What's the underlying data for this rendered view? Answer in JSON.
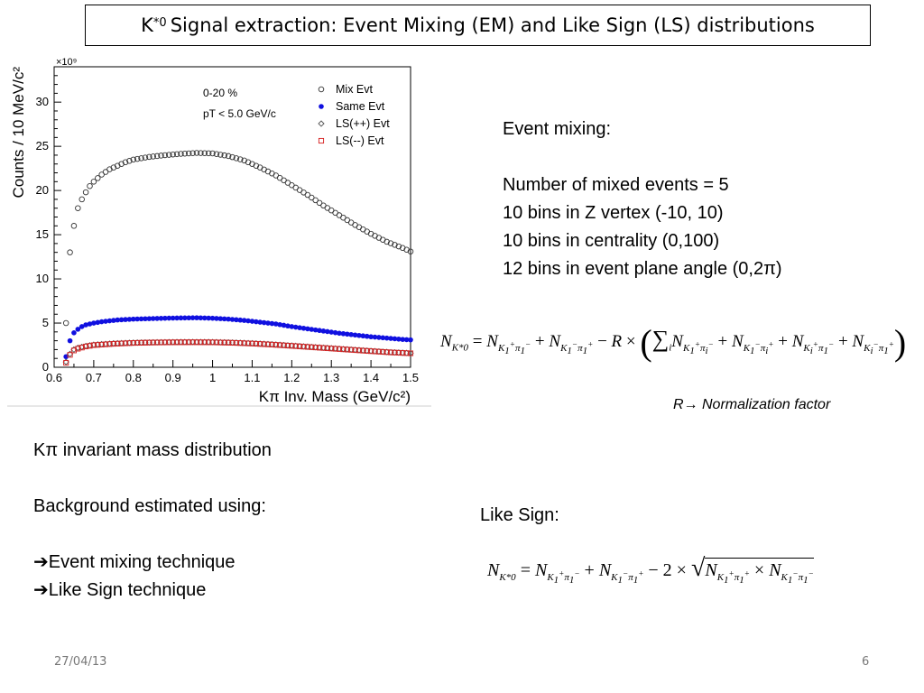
{
  "title": {
    "prefix": "K",
    "superscript": "*0",
    "text": "Signal extraction: Event Mixing (EM) and Like Sign (LS) distributions"
  },
  "event_mixing": {
    "heading": "Event mixing:",
    "lines": [
      "Number of mixed events = 5",
      "10 bins in Z vertex (-10, 10)",
      "10 bins in centrality (0,100)",
      "12 bins in event plane angle (0,2π)"
    ]
  },
  "formula_em": "N_{K*0} = N_{K1+π1-} + N_{K1-π1+} − R × ( Σ_i N_{K1+πi-} + N_{K1-πi+} + N_{Ki+π1-} + N_{Ki-π1+} )",
  "normalization_note": "R→ Normalization factor",
  "left_text": {
    "line1": "Kπ invariant mass distribution",
    "line2": "Background estimated using:",
    "line3": "Event mixing technique",
    "line4": "Like Sign technique"
  },
  "like_sign_label": "Like Sign:",
  "formula_ls": "N_{K*0} = N_{K1+π1-} + N_{K1-π1+} − 2 × √(N_{K1+π1+} × N_{K1-π1-})",
  "footer": {
    "date": "27/04/13",
    "page": "6"
  },
  "chart_data": {
    "type": "scatter",
    "xlabel": "Kπ Inv. Mass (GeV/c²)",
    "ylabel": "Counts / 10 MeV/c²",
    "y_multiplier": "×10⁹",
    "xlim": [
      0.6,
      1.5
    ],
    "ylim": [
      0,
      34
    ],
    "x_ticks": [
      "0.6",
      "0.7",
      "0.8",
      "0.9",
      "1",
      "1.1",
      "1.2",
      "1.3",
      "1.4",
      "1.5"
    ],
    "y_ticks": [
      "0",
      "5",
      "10",
      "15",
      "20",
      "25",
      "30"
    ],
    "annotations": [
      "0-20 %",
      "pT < 5.0 GeV/c"
    ],
    "legend_position": "top-right",
    "series": [
      {
        "name": "Mix Evt",
        "color": "#333333",
        "marker": "open-circle",
        "points": [
          [
            0.63,
            5.0
          ],
          [
            0.64,
            13.0
          ],
          [
            0.65,
            16.0
          ],
          [
            0.66,
            18.0
          ],
          [
            0.67,
            19.0
          ],
          [
            0.68,
            19.8
          ],
          [
            0.69,
            20.5
          ],
          [
            0.7,
            21.0
          ],
          [
            0.72,
            21.8
          ],
          [
            0.74,
            22.4
          ],
          [
            0.76,
            22.8
          ],
          [
            0.78,
            23.2
          ],
          [
            0.8,
            23.5
          ],
          [
            0.84,
            23.8
          ],
          [
            0.88,
            24.0
          ],
          [
            0.92,
            24.15
          ],
          [
            0.96,
            24.25
          ],
          [
            1.0,
            24.2
          ],
          [
            1.04,
            23.9
          ],
          [
            1.08,
            23.4
          ],
          [
            1.12,
            22.6
          ],
          [
            1.16,
            21.7
          ],
          [
            1.2,
            20.6
          ],
          [
            1.24,
            19.5
          ],
          [
            1.28,
            18.3
          ],
          [
            1.32,
            17.2
          ],
          [
            1.36,
            16.1
          ],
          [
            1.4,
            15.1
          ],
          [
            1.44,
            14.2
          ],
          [
            1.48,
            13.5
          ],
          [
            1.5,
            13.1
          ]
        ]
      },
      {
        "name": "Same Evt",
        "color": "#1010e0",
        "marker": "filled-circle",
        "points": [
          [
            0.63,
            1.2
          ],
          [
            0.64,
            3.0
          ],
          [
            0.65,
            3.9
          ],
          [
            0.66,
            4.3
          ],
          [
            0.67,
            4.6
          ],
          [
            0.68,
            4.8
          ],
          [
            0.7,
            5.0
          ],
          [
            0.72,
            5.15
          ],
          [
            0.74,
            5.25
          ],
          [
            0.76,
            5.35
          ],
          [
            0.8,
            5.45
          ],
          [
            0.84,
            5.5
          ],
          [
            0.88,
            5.55
          ],
          [
            0.92,
            5.58
          ],
          [
            0.96,
            5.6
          ],
          [
            1.0,
            5.55
          ],
          [
            1.04,
            5.45
          ],
          [
            1.08,
            5.3
          ],
          [
            1.12,
            5.1
          ],
          [
            1.16,
            4.9
          ],
          [
            1.2,
            4.6
          ],
          [
            1.24,
            4.35
          ],
          [
            1.28,
            4.1
          ],
          [
            1.32,
            3.85
          ],
          [
            1.36,
            3.65
          ],
          [
            1.4,
            3.45
          ],
          [
            1.44,
            3.3
          ],
          [
            1.48,
            3.15
          ],
          [
            1.5,
            3.1
          ]
        ]
      },
      {
        "name": "LS(++) Evt",
        "color": "#555555",
        "marker": "open-diamond",
        "points": [
          [
            0.63,
            0.6
          ],
          [
            0.64,
            1.5
          ],
          [
            0.65,
            2.0
          ],
          [
            0.66,
            2.2
          ],
          [
            0.68,
            2.4
          ],
          [
            0.7,
            2.55
          ],
          [
            0.75,
            2.7
          ],
          [
            0.8,
            2.78
          ],
          [
            0.85,
            2.82
          ],
          [
            0.9,
            2.85
          ],
          [
            0.95,
            2.86
          ],
          [
            1.0,
            2.85
          ],
          [
            1.05,
            2.8
          ],
          [
            1.1,
            2.72
          ],
          [
            1.15,
            2.6
          ],
          [
            1.2,
            2.45
          ],
          [
            1.25,
            2.3
          ],
          [
            1.3,
            2.15
          ],
          [
            1.35,
            2.0
          ],
          [
            1.4,
            1.85
          ],
          [
            1.45,
            1.7
          ],
          [
            1.5,
            1.6
          ]
        ]
      },
      {
        "name": "LS(--) Evt",
        "color": "#d62020",
        "marker": "open-square",
        "points": [
          [
            0.63,
            0.5
          ],
          [
            0.64,
            1.4
          ],
          [
            0.65,
            1.9
          ],
          [
            0.66,
            2.1
          ],
          [
            0.68,
            2.35
          ],
          [
            0.7,
            2.5
          ],
          [
            0.75,
            2.65
          ],
          [
            0.8,
            2.75
          ],
          [
            0.85,
            2.8
          ],
          [
            0.9,
            2.82
          ],
          [
            0.95,
            2.83
          ],
          [
            1.0,
            2.82
          ],
          [
            1.05,
            2.77
          ],
          [
            1.1,
            2.68
          ],
          [
            1.15,
            2.56
          ],
          [
            1.2,
            2.42
          ],
          [
            1.25,
            2.27
          ],
          [
            1.3,
            2.12
          ],
          [
            1.35,
            1.97
          ],
          [
            1.4,
            1.82
          ],
          [
            1.45,
            1.68
          ],
          [
            1.5,
            1.58
          ]
        ]
      }
    ]
  }
}
